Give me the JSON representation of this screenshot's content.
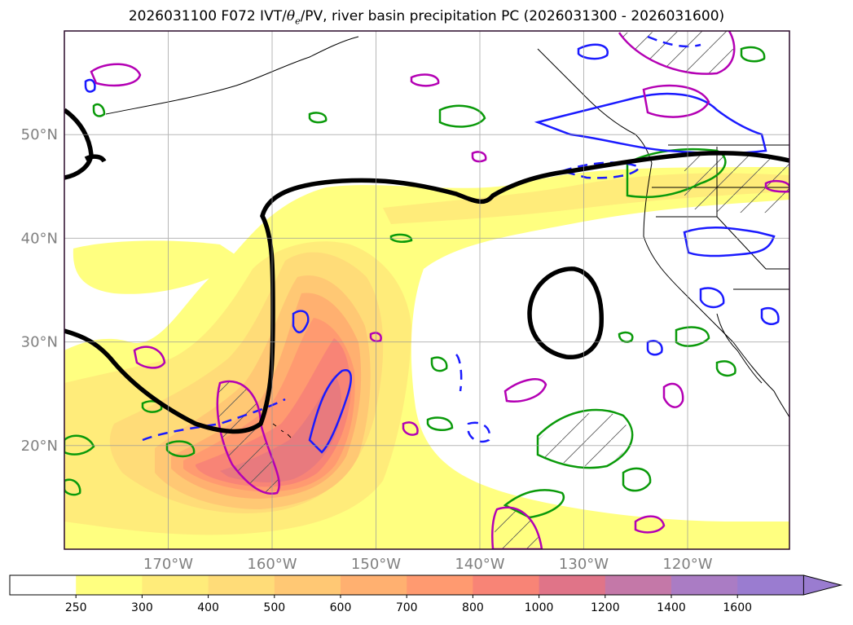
{
  "title": {
    "prefix": "2026031100 F072 IVT/",
    "theta": "θ",
    "theta_sub": "e",
    "suffix": "/PV, river basin precipitation PC (2026031300 - 2026031600)"
  },
  "map": {
    "lat_labels": [
      {
        "label": "50°N",
        "lat": 50
      },
      {
        "label": "40°N",
        "lat": 40
      },
      {
        "label": "30°N",
        "lat": 30
      },
      {
        "label": "20°N",
        "lat": 20
      }
    ],
    "lon_labels": [
      {
        "label": "170°W",
        "lon": -170
      },
      {
        "label": "160°W",
        "lon": -160
      },
      {
        "label": "150°W",
        "lon": -150
      },
      {
        "label": "140°W",
        "lon": -140
      },
      {
        "label": "130°W",
        "lon": -130
      },
      {
        "label": "120°W",
        "lon": -120
      }
    ],
    "extent": {
      "lon_min": -180,
      "lon_max": -110,
      "lat_min": 10,
      "lat_max": 60
    },
    "colors": {
      "theta_e": "#0a9a0a",
      "pv": "#1a1aff",
      "precip": "#b400b4",
      "contour_500": "#000000",
      "coast": "#000000"
    }
  },
  "colorbar": {
    "levels": [
      "250",
      "300",
      "400",
      "500",
      "600",
      "700",
      "800",
      "1000",
      "1200",
      "1400",
      "1600"
    ],
    "colors": [
      "#ffffff",
      "#ffff80",
      "#ffec7a",
      "#ffdc78",
      "#ffc874",
      "#ffb070",
      "#ff9a70",
      "#f88476",
      "#e07488",
      "#c478a8",
      "#aa7cc4",
      "#9a7cd0"
    ]
  }
}
